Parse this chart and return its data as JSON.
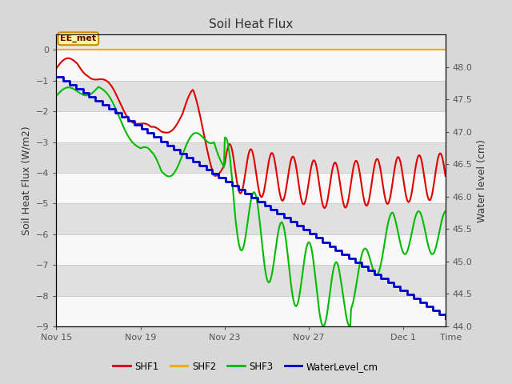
{
  "title": "Soil Heat Flux",
  "ylabel_left": "Soil Heat Flux (W/m2)",
  "ylabel_right": "Water level (cm)",
  "xlabel": "Time",
  "ylim_left": [
    -9.0,
    0.5
  ],
  "ylim_right": [
    44.0,
    48.5
  ],
  "yticks_left": [
    0.0,
    -1.0,
    -2.0,
    -3.0,
    -4.0,
    -5.0,
    -6.0,
    -7.0,
    -8.0,
    -9.0
  ],
  "yticks_right": [
    44.0,
    44.5,
    45.0,
    45.5,
    46.0,
    46.5,
    47.0,
    47.5,
    48.0
  ],
  "bg_color": "#d8d8d8",
  "plot_bg_color": "#d8d8d8",
  "shf1_color": "#dd0000",
  "shf2_color": "#ffa500",
  "shf3_color": "#00bb00",
  "water_color": "#0000cc",
  "ee_met_label": "EE_met",
  "legend_labels": [
    "SHF1",
    "SHF2",
    "SHF3",
    "WaterLevel_cm"
  ],
  "xtick_labels": [
    "Nov 15",
    "Nov 19",
    "Nov 23",
    "Nov 27",
    "Dec 1"
  ],
  "xtick_positions": [
    0,
    4,
    8,
    12,
    16.5
  ],
  "n_days": 18.5
}
